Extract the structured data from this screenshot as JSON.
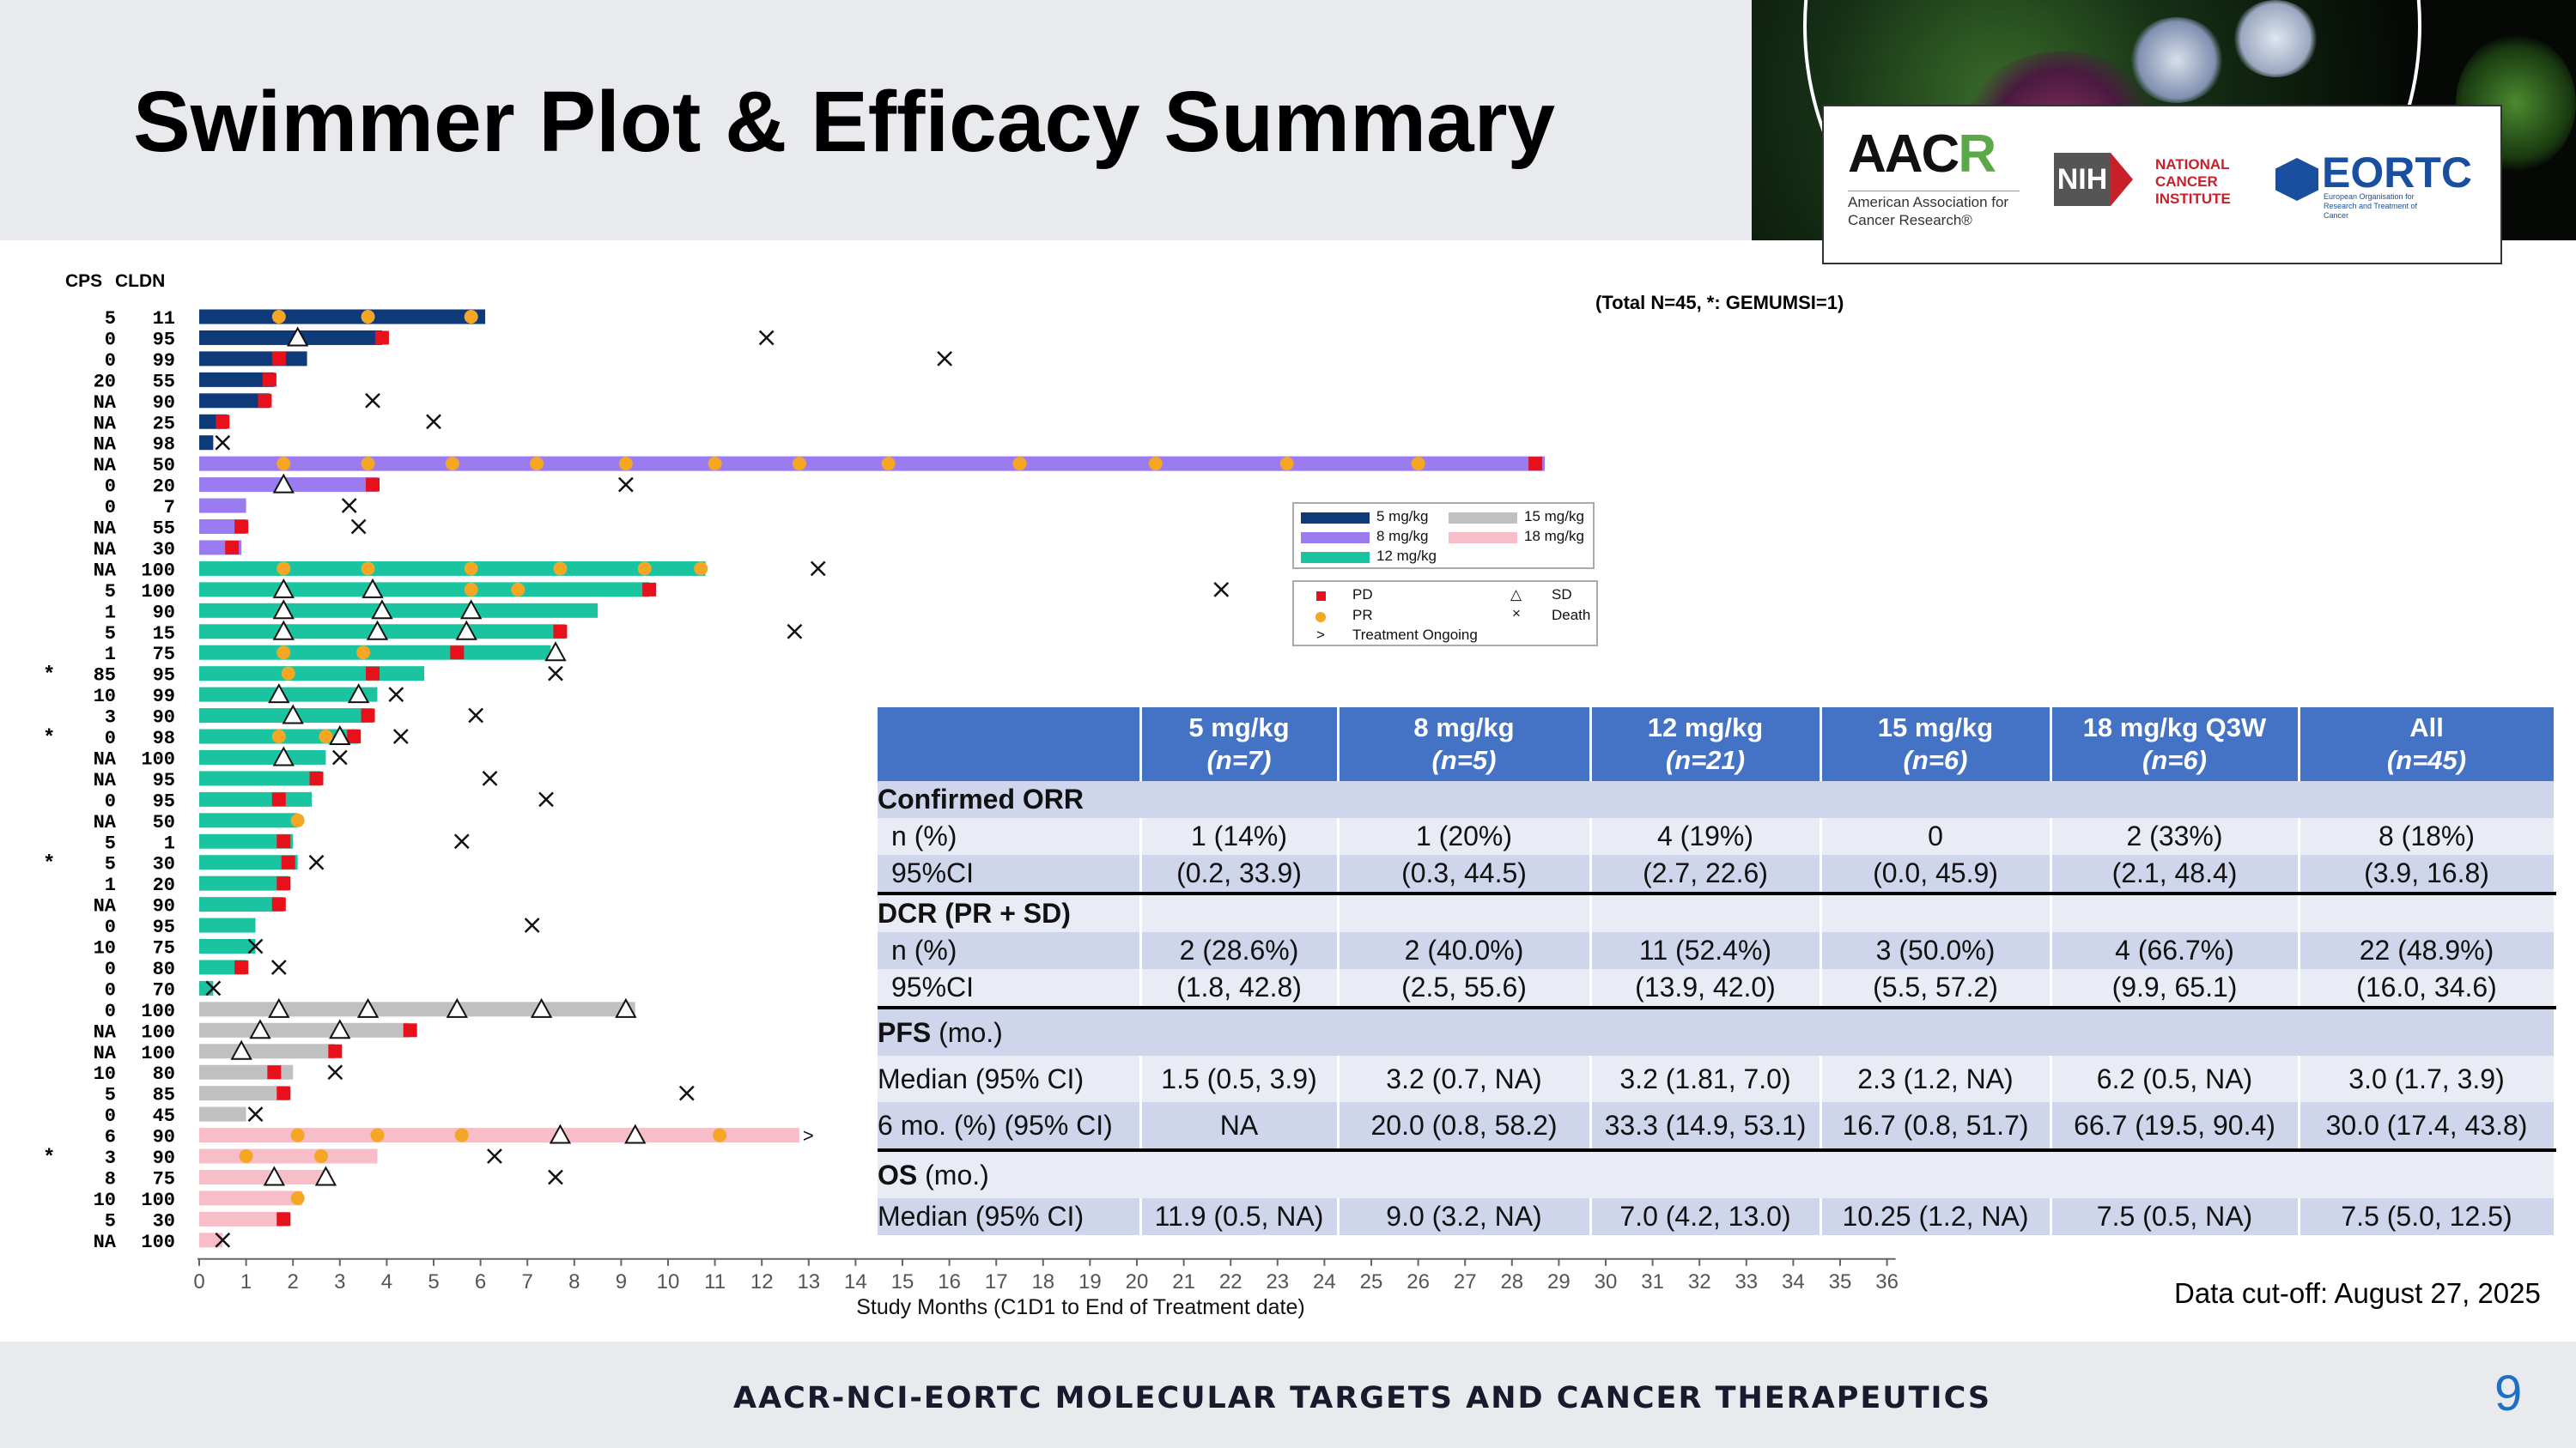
{
  "slide": {
    "title": "Swimmer Plot & Efficacy Summary",
    "total_note": "(Total N=45, *: GEMUMSI=1)",
    "data_cutoff": "Data cut-off: August 27, 2025",
    "footer": "AACR-NCI-EORTC MOLECULAR TARGETS AND CANCER THERAPEUTICS",
    "page_number": "9"
  },
  "logos": {
    "aacr_mark": "AACR",
    "aacr_text": "American Association for Cancer Research®",
    "nih_mark": "NIH",
    "nci_text": "NATIONAL CANCER INSTITUTE",
    "eortc_mark": "EORTC",
    "eortc_text": "European Organisation for Research and Treatment of Cancer"
  },
  "legend": {
    "doses": [
      "5 mg/kg",
      "8 mg/kg",
      "12 mg/kg",
      "15 mg/kg",
      "18 mg/kg"
    ],
    "events": [
      "PD",
      "PR",
      "Treatment Ongoing",
      "SD",
      "Death"
    ],
    "treatment_ongoing_symbol": ">"
  },
  "colors": {
    "5 mg/kg": "#0f3a7a",
    "8 mg/kg": "#9b7cf0",
    "12 mg/kg": "#1bc4a0",
    "15 mg/kg": "#c0c0c0",
    "18 mg/kg": "#f7bdc8",
    "PD": "#e8111b",
    "PR": "#f5a623",
    "table_header": "#4472c4",
    "table_band_dark": "#cfd5ea",
    "table_band_light": "#e9ebf5"
  },
  "chart_data": {
    "type": "swimmer",
    "ylabel_columns": [
      "CPS",
      "CLDN"
    ],
    "xlabel": "Study Months (C1D1 to End of Treatment date)",
    "xlim": [
      0,
      36
    ],
    "xticks": [
      0,
      1,
      2,
      3,
      4,
      5,
      6,
      7,
      8,
      9,
      10,
      11,
      12,
      13,
      14,
      15,
      16,
      17,
      18,
      19,
      20,
      21,
      22,
      23,
      24,
      25,
      26,
      27,
      28,
      29,
      30,
      31,
      32,
      33,
      34,
      35,
      36
    ],
    "patients": [
      {
        "star": false,
        "cps": "5",
        "cldn": "11",
        "dose": "5 mg/kg",
        "end": 6.1,
        "pr": [
          1.7,
          3.6,
          5.8
        ],
        "sd": [],
        "pd": null,
        "death": null,
        "ongoing": false
      },
      {
        "star": false,
        "cps": "0",
        "cldn": "95",
        "dose": "5 mg/kg",
        "end": 3.9,
        "pr": [],
        "sd": [
          2.1
        ],
        "pd": 3.9,
        "death": 12.1,
        "ongoing": false
      },
      {
        "star": false,
        "cps": "0",
        "cldn": "99",
        "dose": "5 mg/kg",
        "end": 2.3,
        "pr": [],
        "sd": [],
        "pd": 1.7,
        "death": 15.9,
        "ongoing": false
      },
      {
        "star": false,
        "cps": "20",
        "cldn": "55",
        "dose": "5 mg/kg",
        "end": 1.6,
        "pr": [],
        "sd": [],
        "pd": 1.5,
        "death": null,
        "ongoing": false
      },
      {
        "star": false,
        "cps": "NA",
        "cldn": "90",
        "dose": "5 mg/kg",
        "end": 1.5,
        "pr": [],
        "sd": [],
        "pd": 1.4,
        "death": 3.7,
        "ongoing": false
      },
      {
        "star": false,
        "cps": "NA",
        "cldn": "25",
        "dose": "5 mg/kg",
        "end": 0.6,
        "pr": [],
        "sd": [],
        "pd": 0.5,
        "death": 5.0,
        "ongoing": false
      },
      {
        "star": false,
        "cps": "NA",
        "cldn": "98",
        "dose": "5 mg/kg",
        "end": 0.3,
        "pr": [],
        "sd": [],
        "pd": null,
        "death": 0.5,
        "ongoing": false
      },
      {
        "star": false,
        "cps": "NA",
        "cldn": "50",
        "dose": "8 mg/kg",
        "end": 28.7,
        "pr": [
          1.8,
          3.6,
          5.4,
          7.2,
          9.1,
          11.0,
          12.8,
          14.7,
          17.5,
          20.4,
          23.2,
          26.0
        ],
        "sd": [],
        "pd": 28.5,
        "death": null,
        "ongoing": false
      },
      {
        "star": false,
        "cps": "0",
        "cldn": "20",
        "dose": "8 mg/kg",
        "end": 3.8,
        "pr": [],
        "sd": [
          1.8
        ],
        "pd": 3.7,
        "death": 9.1,
        "ongoing": false
      },
      {
        "star": false,
        "cps": "0",
        "cldn": "7",
        "dose": "8 mg/kg",
        "end": 1.0,
        "pr": [],
        "sd": [],
        "pd": null,
        "death": 3.2,
        "ongoing": false
      },
      {
        "star": false,
        "cps": "NA",
        "cldn": "55",
        "dose": "8 mg/kg",
        "end": 1.0,
        "pr": [],
        "sd": [],
        "pd": 0.9,
        "death": 3.4,
        "ongoing": false
      },
      {
        "star": false,
        "cps": "NA",
        "cldn": "30",
        "dose": "8 mg/kg",
        "end": 0.9,
        "pr": [],
        "sd": [],
        "pd": 0.7,
        "death": null,
        "ongoing": false
      },
      {
        "star": false,
        "cps": "NA",
        "cldn": "100",
        "dose": "12 mg/kg",
        "end": 10.8,
        "pr": [
          1.8,
          3.6,
          5.8,
          7.7,
          9.5,
          10.7
        ],
        "sd": [],
        "pd": null,
        "death": 13.2,
        "ongoing": false
      },
      {
        "star": false,
        "cps": "5",
        "cldn": "100",
        "dose": "12 mg/kg",
        "end": 9.6,
        "pr": [
          5.8,
          6.8
        ],
        "sd": [
          1.8,
          3.7
        ],
        "pd": 9.6,
        "death": 21.8,
        "ongoing": false
      },
      {
        "star": false,
        "cps": "1",
        "cldn": "90",
        "dose": "12 mg/kg",
        "end": 8.5,
        "pr": [],
        "sd": [
          1.8,
          3.9,
          5.8
        ],
        "pd": null,
        "death": null,
        "ongoing": false
      },
      {
        "star": false,
        "cps": "5",
        "cldn": "15",
        "dose": "12 mg/kg",
        "end": 7.8,
        "pr": [],
        "sd": [
          1.8,
          3.8,
          5.7
        ],
        "pd": 7.7,
        "death": 12.7,
        "ongoing": false
      },
      {
        "star": false,
        "cps": "1",
        "cldn": "75",
        "dose": "12 mg/kg",
        "end": 7.5,
        "pr": [
          1.8,
          3.5
        ],
        "sd": [
          7.6
        ],
        "pd": 5.5,
        "death": null,
        "ongoing": false
      },
      {
        "star": true,
        "cps": "85",
        "cldn": "95",
        "dose": "12 mg/kg",
        "end": 4.8,
        "pr": [
          1.9
        ],
        "sd": [],
        "pd": 3.7,
        "death": 7.6,
        "ongoing": false
      },
      {
        "star": false,
        "cps": "10",
        "cldn": "99",
        "dose": "12 mg/kg",
        "end": 3.8,
        "pr": [],
        "sd": [
          1.7,
          3.4
        ],
        "pd": null,
        "death": 4.2,
        "ongoing": false
      },
      {
        "star": false,
        "cps": "3",
        "cldn": "90",
        "dose": "12 mg/kg",
        "end": 3.7,
        "pr": [],
        "sd": [
          2.0
        ],
        "pd": 3.6,
        "death": 5.9,
        "ongoing": false
      },
      {
        "star": true,
        "cps": "0",
        "cldn": "98",
        "dose": "12 mg/kg",
        "end": 3.4,
        "pr": [
          1.7,
          2.7
        ],
        "sd": [
          3.0
        ],
        "pd": 3.3,
        "death": 4.3,
        "ongoing": false
      },
      {
        "star": false,
        "cps": "NA",
        "cldn": "100",
        "dose": "12 mg/kg",
        "end": 2.7,
        "pr": [],
        "sd": [
          1.8
        ],
        "pd": null,
        "death": 3.0,
        "ongoing": false
      },
      {
        "star": false,
        "cps": "NA",
        "cldn": "95",
        "dose": "12 mg/kg",
        "end": 2.6,
        "pr": [],
        "sd": [],
        "pd": 2.5,
        "death": 6.2,
        "ongoing": false
      },
      {
        "star": false,
        "cps": "0",
        "cldn": "95",
        "dose": "12 mg/kg",
        "end": 2.4,
        "pr": [],
        "sd": [],
        "pd": 1.7,
        "death": 7.4,
        "ongoing": false
      },
      {
        "star": false,
        "cps": "NA",
        "cldn": "50",
        "dose": "12 mg/kg",
        "end": 2.1,
        "pr": [
          2.1
        ],
        "sd": [],
        "pd": null,
        "death": null,
        "ongoing": false
      },
      {
        "star": false,
        "cps": "5",
        "cldn": "1",
        "dose": "12 mg/kg",
        "end": 2.0,
        "pr": [],
        "sd": [],
        "pd": 1.8,
        "death": 5.6,
        "ongoing": false
      },
      {
        "star": true,
        "cps": "5",
        "cldn": "30",
        "dose": "12 mg/kg",
        "end": 2.1,
        "pr": [],
        "sd": [],
        "pd": 1.9,
        "death": 2.5,
        "ongoing": false
      },
      {
        "star": false,
        "cps": "1",
        "cldn": "20",
        "dose": "12 mg/kg",
        "end": 1.9,
        "pr": [],
        "sd": [],
        "pd": 1.8,
        "death": null,
        "ongoing": false
      },
      {
        "star": false,
        "cps": "NA",
        "cldn": "90",
        "dose": "12 mg/kg",
        "end": 1.8,
        "pr": [],
        "sd": [],
        "pd": 1.7,
        "death": null,
        "ongoing": false
      },
      {
        "star": false,
        "cps": "0",
        "cldn": "95",
        "dose": "12 mg/kg",
        "end": 1.2,
        "pr": [],
        "sd": [],
        "pd": null,
        "death": 7.1,
        "ongoing": false
      },
      {
        "star": false,
        "cps": "10",
        "cldn": "75",
        "dose": "12 mg/kg",
        "end": 1.2,
        "pr": [],
        "sd": [],
        "pd": null,
        "death": 1.2,
        "ongoing": false
      },
      {
        "star": false,
        "cps": "0",
        "cldn": "80",
        "dose": "12 mg/kg",
        "end": 1.0,
        "pr": [],
        "sd": [],
        "pd": 0.9,
        "death": 1.7,
        "ongoing": false
      },
      {
        "star": false,
        "cps": "0",
        "cldn": "70",
        "dose": "12 mg/kg",
        "end": 0.3,
        "pr": [],
        "sd": [],
        "pd": null,
        "death": 0.3,
        "ongoing": false
      },
      {
        "star": false,
        "cps": "0",
        "cldn": "100",
        "dose": "15 mg/kg",
        "end": 9.3,
        "pr": [],
        "sd": [
          1.7,
          3.6,
          5.5,
          7.3,
          9.1
        ],
        "pd": null,
        "death": null,
        "ongoing": false
      },
      {
        "star": false,
        "cps": "NA",
        "cldn": "100",
        "dose": "15 mg/kg",
        "end": 4.5,
        "pr": [],
        "sd": [
          1.3,
          3.0
        ],
        "pd": 4.5,
        "death": null,
        "ongoing": false
      },
      {
        "star": false,
        "cps": "NA",
        "cldn": "100",
        "dose": "15 mg/kg",
        "end": 2.9,
        "pr": [],
        "sd": [
          0.9
        ],
        "pd": 2.9,
        "death": null,
        "ongoing": false
      },
      {
        "star": false,
        "cps": "10",
        "cldn": "80",
        "dose": "15 mg/kg",
        "end": 2.0,
        "pr": [],
        "sd": [],
        "pd": 1.6,
        "death": 2.9,
        "ongoing": false
      },
      {
        "star": false,
        "cps": "5",
        "cldn": "85",
        "dose": "15 mg/kg",
        "end": 1.9,
        "pr": [],
        "sd": [],
        "pd": 1.8,
        "death": 10.4,
        "ongoing": false
      },
      {
        "star": false,
        "cps": "0",
        "cldn": "45",
        "dose": "15 mg/kg",
        "end": 1.0,
        "pr": [],
        "sd": [],
        "pd": null,
        "death": 1.2,
        "ongoing": false
      },
      {
        "star": false,
        "cps": "6",
        "cldn": "90",
        "dose": "18 mg/kg",
        "end": 12.8,
        "pr": [
          2.1,
          3.8,
          5.6,
          11.1
        ],
        "sd": [
          7.7,
          9.3
        ],
        "pd": null,
        "death": null,
        "ongoing": true
      },
      {
        "star": true,
        "cps": "3",
        "cldn": "90",
        "dose": "18 mg/kg",
        "end": 3.8,
        "pr": [
          1.0,
          2.6
        ],
        "sd": [],
        "pd": null,
        "death": 6.3,
        "ongoing": false
      },
      {
        "star": false,
        "cps": "8",
        "cldn": "75",
        "dose": "18 mg/kg",
        "end": 2.8,
        "pr": [],
        "sd": [
          1.6,
          2.7
        ],
        "pd": null,
        "death": 7.6,
        "ongoing": false
      },
      {
        "star": false,
        "cps": "10",
        "cldn": "100",
        "dose": "18 mg/kg",
        "end": 2.2,
        "pr": [
          2.1
        ],
        "sd": [],
        "pd": null,
        "death": null,
        "ongoing": false
      },
      {
        "star": false,
        "cps": "5",
        "cldn": "30",
        "dose": "18 mg/kg",
        "end": 1.9,
        "pr": [],
        "sd": [],
        "pd": 1.8,
        "death": null,
        "ongoing": false
      },
      {
        "star": false,
        "cps": "NA",
        "cldn": "100",
        "dose": "18 mg/kg",
        "end": 0.5,
        "pr": [],
        "sd": [],
        "pd": null,
        "death": 0.5,
        "ongoing": false
      }
    ]
  },
  "table": {
    "headers": [
      {
        "dose": "",
        "n": ""
      },
      {
        "dose": "5 mg/kg",
        "n": "(n=7)"
      },
      {
        "dose": "8 mg/kg",
        "n": "(n=5)"
      },
      {
        "dose": "12 mg/kg",
        "n": "(n=21)"
      },
      {
        "dose": "15 mg/kg",
        "n": "(n=6)"
      },
      {
        "dose": "18 mg/kg Q3W",
        "n": "(n=6)"
      },
      {
        "dose": "All",
        "n": "(n=45)"
      }
    ],
    "sections": {
      "orr": "Confirmed ORR",
      "dcr": "DCR (PR + SD)",
      "pfs": "PFS",
      "pfs_unit": " (mo.)",
      "os": "OS",
      "os_unit": " (mo.)"
    },
    "rows": {
      "orr_n": [
        "n (%)",
        "1 (14%)",
        "1 (20%)",
        "4 (19%)",
        "0",
        "2 (33%)",
        "8 (18%)"
      ],
      "orr_ci": [
        "95%CI",
        "(0.2, 33.9)",
        "(0.3, 44.5)",
        "(2.7, 22.6)",
        "(0.0, 45.9)",
        "(2.1, 48.4)",
        "(3.9, 16.8)"
      ],
      "dcr_n": [
        "n (%)",
        "2 (28.6%)",
        "2 (40.0%)",
        "11 (52.4%)",
        "3 (50.0%)",
        "4 (66.7%)",
        "22 (48.9%)"
      ],
      "dcr_ci": [
        "95%CI",
        "(1.8, 42.8)",
        "(2.5, 55.6)",
        "(13.9, 42.0)",
        "(5.5, 57.2)",
        "(9.9, 65.1)",
        "(16.0, 34.6)"
      ],
      "pfs_median": [
        "Median (95% CI)",
        "1.5 (0.5, 3.9)",
        "3.2 (0.7, NA)",
        "3.2 (1.81, 7.0)",
        "2.3 (1.2, NA)",
        "6.2 (0.5, NA)",
        "3.0 (1.7, 3.9)"
      ],
      "pfs_6mo": [
        "6 mo. (%) (95% CI)",
        "NA",
        "20.0 (0.8, 58.2)",
        "33.3 (14.9, 53.1)",
        "16.7 (0.8, 51.7)",
        "66.7 (19.5, 90.4)",
        "30.0 (17.4, 43.8)"
      ],
      "os_median": [
        "Median (95% CI)",
        "11.9 (0.5, NA)",
        "9.0 (3.2, NA)",
        "7.0 (4.2, 13.0)",
        "10.25 (1.2, NA)",
        "7.5 (0.5, NA)",
        "7.5 (5.0, 12.5)"
      ]
    }
  }
}
